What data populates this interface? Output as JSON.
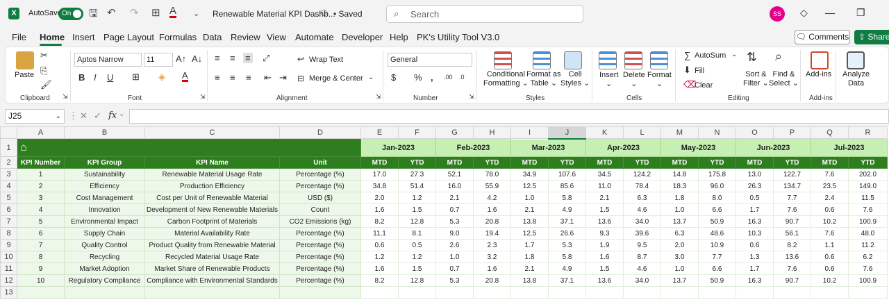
{
  "titlebar": {
    "autosave_label": "AutoSave",
    "autosave_state": "On",
    "doc_title": "Renewable Material KPI Dashb...",
    "saved_status": "• Saved",
    "search_placeholder": "Search",
    "avatar_initials": "SS",
    "app_icon": "X"
  },
  "menu": {
    "tabs": [
      "File",
      "Home",
      "Insert",
      "Page Layout",
      "Formulas",
      "Data",
      "Review",
      "View",
      "Automate",
      "Developer",
      "Help",
      "PK's Utility Tool V3.0"
    ],
    "active": "Home",
    "comments": "Comments",
    "share": "Share"
  },
  "ribbon": {
    "clipboard": {
      "label": "Clipboard",
      "paste": "Paste"
    },
    "font": {
      "label": "Font",
      "name": "Aptos Narrow",
      "size": "11"
    },
    "alignment": {
      "label": "Alignment",
      "wrap": "Wrap Text",
      "merge": "Merge & Center"
    },
    "number": {
      "label": "Number",
      "format": "General"
    },
    "styles": {
      "label": "Styles",
      "cond1": "Conditional",
      "cond2": "Formatting",
      "table1": "Format as",
      "table2": "Table",
      "cell1": "Cell",
      "cell2": "Styles"
    },
    "cells": {
      "label": "Cells",
      "insert": "Insert",
      "delete": "Delete",
      "format": "Format"
    },
    "editing": {
      "label": "Editing",
      "autosum": "AutoSum",
      "fill": "Fill",
      "clear": "Clear",
      "sort1": "Sort &",
      "sort2": "Filter",
      "find1": "Find &",
      "find2": "Select"
    },
    "addins": {
      "label": "Add-ins",
      "addins": "Add-ins",
      "analyze1": "Analyze",
      "analyze2": "Data"
    }
  },
  "formula_bar": {
    "name_box": "J25",
    "fx": "fx",
    "value": ""
  },
  "columns": [
    "A",
    "B",
    "C",
    "D",
    "E",
    "F",
    "G",
    "H",
    "I",
    "J",
    "K",
    "L",
    "M",
    "N",
    "O",
    "P",
    "Q",
    "R"
  ],
  "selected_column": "J",
  "row_numbers": [
    "1",
    "2",
    "3",
    "4",
    "5",
    "6",
    "7",
    "8",
    "9",
    "10",
    "11",
    "12",
    "13"
  ],
  "headers": {
    "kpi_number": "KPI Number",
    "kpi_group": "KPI Group",
    "kpi_name": "KPI Name",
    "unit": "Unit",
    "mtd": "MTD",
    "ytd": "YTD"
  },
  "months": [
    "Jan-2023",
    "Feb-2023",
    "Mar-2023",
    "Apr-2023",
    "May-2023",
    "Jun-2023",
    "Jul-2023"
  ],
  "rows": [
    {
      "num": "1",
      "group": "Sustainability",
      "name": "Renewable Material Usage Rate",
      "unit": "Percentage (%)",
      "vals": [
        "17.0",
        "27.3",
        "52.1",
        "78.0",
        "34.9",
        "107.6",
        "34.5",
        "124.2",
        "14.8",
        "175.8",
        "13.0",
        "122.7",
        "7.6",
        "202.0"
      ]
    },
    {
      "num": "2",
      "group": "Efficiency",
      "name": "Production Efficiency",
      "unit": "Percentage (%)",
      "vals": [
        "34.8",
        "51.4",
        "16.0",
        "55.9",
        "12.5",
        "85.6",
        "11.0",
        "78.4",
        "18.3",
        "96.0",
        "26.3",
        "134.7",
        "23.5",
        "149.0"
      ]
    },
    {
      "num": "3",
      "group": "Cost Management",
      "name": "Cost per Unit of Renewable Material",
      "unit": "USD ($)",
      "vals": [
        "2.0",
        "1.2",
        "2.1",
        "4.2",
        "1.0",
        "5.8",
        "2.1",
        "6.3",
        "1.8",
        "8.0",
        "0.5",
        "7.7",
        "2.4",
        "11.5"
      ]
    },
    {
      "num": "4",
      "group": "Innovation",
      "name": "Development of New Renewable Materials",
      "unit": "Count",
      "vals": [
        "1.6",
        "1.5",
        "0.7",
        "1.6",
        "2.1",
        "4.9",
        "1.5",
        "4.6",
        "1.0",
        "6.6",
        "1.7",
        "7.6",
        "0.6",
        "7.6"
      ]
    },
    {
      "num": "5",
      "group": "Environmental Impact",
      "name": "Carbon Footprint of Materials",
      "unit": "CO2 Emissions (kg)",
      "vals": [
        "8.2",
        "12.8",
        "5.3",
        "20.8",
        "13.8",
        "37.1",
        "13.6",
        "34.0",
        "13.7",
        "50.9",
        "16.3",
        "90.7",
        "10.2",
        "100.9"
      ]
    },
    {
      "num": "6",
      "group": "Supply Chain",
      "name": "Material Availability Rate",
      "unit": "Percentage (%)",
      "vals": [
        "11.1",
        "8.1",
        "9.0",
        "19.4",
        "12.5",
        "26.6",
        "9.3",
        "39.6",
        "6.3",
        "48.6",
        "10.3",
        "56.1",
        "7.6",
        "48.0"
      ]
    },
    {
      "num": "7",
      "group": "Quality Control",
      "name": "Product Quality from Renewable Material",
      "unit": "Percentage (%)",
      "vals": [
        "0.6",
        "0.5",
        "2.6",
        "2.3",
        "1.7",
        "5.3",
        "1.9",
        "9.5",
        "2.0",
        "10.9",
        "0.6",
        "8.2",
        "1.1",
        "11.2"
      ]
    },
    {
      "num": "8",
      "group": "Recycling",
      "name": "Recycled Material Usage Rate",
      "unit": "Percentage (%)",
      "vals": [
        "1.2",
        "1.2",
        "1.0",
        "3.2",
        "1.8",
        "5.8",
        "1.6",
        "8.7",
        "3.0",
        "7.7",
        "1.3",
        "13.6",
        "0.6",
        "6.2"
      ]
    },
    {
      "num": "9",
      "group": "Market Adoption",
      "name": "Market Share of Renewable Products",
      "unit": "Percentage (%)",
      "vals": [
        "1.6",
        "1.5",
        "0.7",
        "1.6",
        "2.1",
        "4.9",
        "1.5",
        "4.6",
        "1.0",
        "6.6",
        "1.7",
        "7.6",
        "0.6",
        "7.6"
      ]
    },
    {
      "num": "10",
      "group": "Regulatory Compliance",
      "name": "Compliance with Environmental Standards",
      "unit": "Percentage (%)",
      "vals": [
        "8.2",
        "12.8",
        "5.3",
        "20.8",
        "13.8",
        "37.1",
        "13.6",
        "34.0",
        "13.7",
        "50.9",
        "16.3",
        "90.7",
        "10.2",
        "100.9"
      ]
    }
  ]
}
